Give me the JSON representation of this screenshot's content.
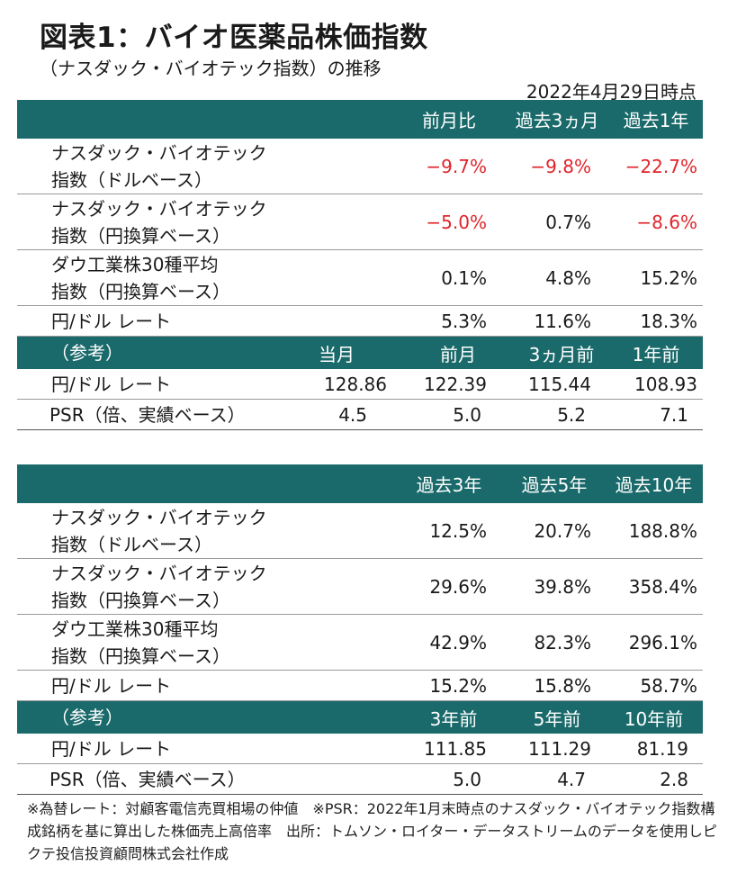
{
  "title": "図表1：バイオ医薬品株価指数",
  "subtitle": "（ナスダック・バイオテック指数）の推移",
  "as_of": "2022年4月29日時点",
  "table1": {
    "header": [
      "前月比",
      "過去3ヵ月",
      "過去1年"
    ],
    "rows": [
      {
        "label1": "ナスダック・バイオテック",
        "label2": "指数（ドルベース）",
        "values": [
          "−9.7%",
          "−9.8%",
          "−22.7%"
        ],
        "negative": [
          true,
          true,
          true
        ]
      },
      {
        "label1": "ナスダック・バイオテック",
        "label2": "指数（円換算ベース）",
        "values": [
          "−5.0%",
          "0.7%",
          "−8.6%"
        ],
        "negative": [
          true,
          false,
          true
        ]
      },
      {
        "label1": "ダウ工業株30種平均",
        "label2": "指数（円換算ベース）",
        "values": [
          "0.1%",
          "4.8%",
          "15.2%"
        ],
        "negative": [
          false,
          false,
          false
        ]
      },
      {
        "label1": "円/ドル レート",
        "values": [
          "5.3%",
          "11.6%",
          "18.3%"
        ],
        "negative": [
          false,
          false,
          false
        ]
      }
    ],
    "ref_header": [
      "（参考）",
      "当月",
      "前月",
      "3ヵ月前",
      "1年前"
    ],
    "ref_rows": [
      {
        "label": "円/ドル レート",
        "values": [
          "128.86",
          "122.39",
          "115.44",
          "108.93"
        ]
      },
      {
        "label": "PSR（倍、実績ベース）",
        "values": [
          "4.5",
          "5.0",
          "5.2",
          "7.1"
        ]
      }
    ]
  },
  "table2": {
    "header": [
      "過去3年",
      "過去5年",
      "過去10年"
    ],
    "rows": [
      {
        "label1": "ナスダック・バイオテック",
        "label2": "指数（ドルベース）",
        "values": [
          "12.5%",
          "20.7%",
          "188.8%"
        ]
      },
      {
        "label1": "ナスダック・バイオテック",
        "label2": "指数（円換算ベース）",
        "values": [
          "29.6%",
          "39.8%",
          "358.4%"
        ]
      },
      {
        "label1": "ダウ工業株30種平均",
        "label2": "指数（円換算ベース）",
        "values": [
          "42.9%",
          "82.3%",
          "296.1%"
        ]
      },
      {
        "label1": "円/ドル レート",
        "values": [
          "15.2%",
          "15.8%",
          "58.7%"
        ]
      }
    ],
    "ref_header": [
      "（参考）",
      "3年前",
      "5年前",
      "10年前"
    ],
    "ref_rows": [
      {
        "label": "円/ドル レート",
        "values": [
          "111.85",
          "111.29",
          "81.19"
        ]
      },
      {
        "label": "PSR（倍、実績ベース）",
        "values": [
          "5.0",
          "4.7",
          "2.8"
        ]
      }
    ]
  },
  "note": "※為替レート：対顧客電信売買相場の仲値　※PSR：2022年1月末時点のナスダック・バイオテック指数構成銘柄を基に算出した株価売上高倍率　出所：トムソン・ロイター・データストリームのデータを使用しピクテ投信投資顧問株式会社作成",
  "colors": {
    "header_bg": "#1b6a6b",
    "negative": "#e0252b"
  }
}
